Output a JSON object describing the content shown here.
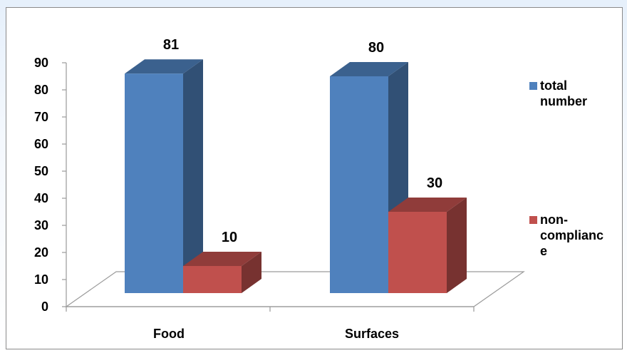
{
  "chart_data": {
    "type": "bar",
    "categories": [
      "Food",
      "Surfaces"
    ],
    "series": [
      {
        "name": "total number",
        "legend_lines": [
          "total",
          "number"
        ],
        "values": [
          81,
          80
        ],
        "color": "#4f81bd"
      },
      {
        "name": "non-compliance",
        "legend_lines": [
          "non-",
          "complianc",
          "e"
        ],
        "values": [
          10,
          30
        ],
        "color": "#c0504d"
      }
    ],
    "yticks": [
      "0",
      "10",
      "20",
      "30",
      "40",
      "50",
      "60",
      "70",
      "80",
      "90"
    ],
    "ylim": [
      0,
      90
    ],
    "data_labels": [
      "81",
      "10",
      "80",
      "30"
    ],
    "legend_position": "right",
    "style": "3d-column"
  }
}
